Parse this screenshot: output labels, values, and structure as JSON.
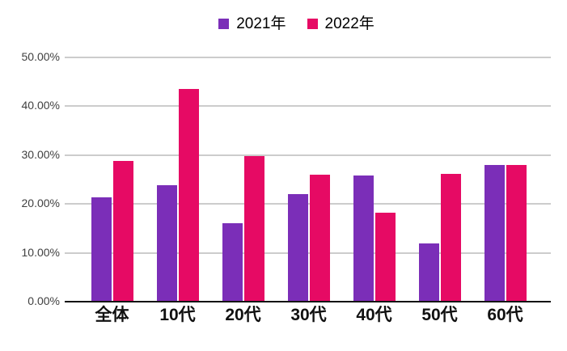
{
  "chart_data": {
    "type": "bar",
    "title": "",
    "xlabel": "",
    "ylabel": "",
    "categories": [
      "全体",
      "10代",
      "20代",
      "30代",
      "40代",
      "50代",
      "60代"
    ],
    "series": [
      {
        "name": "2021年",
        "color": "#7B2EB8",
        "values": [
          21.2,
          23.7,
          15.9,
          21.9,
          25.7,
          11.8,
          27.9
        ]
      },
      {
        "name": "2022年",
        "color": "#E60A64",
        "values": [
          28.6,
          43.4,
          29.6,
          25.8,
          18.0,
          26.0,
          27.8
        ]
      }
    ],
    "value_unit": "%",
    "ylim": [
      0,
      50
    ],
    "ytick_values": [
      0,
      10,
      20,
      30,
      40,
      50
    ],
    "ytick_labels": [
      "0.00%",
      "10.00%",
      "20.00%",
      "30.00%",
      "40.00%",
      "50.00%"
    ],
    "grid": true,
    "legend_position": "top-center"
  },
  "styles": {
    "background": "#ffffff",
    "gridline_color": "#cccccc",
    "axis_line_color": "#141414",
    "tick_label_color": "#404040",
    "category_label_color": "#111111"
  }
}
